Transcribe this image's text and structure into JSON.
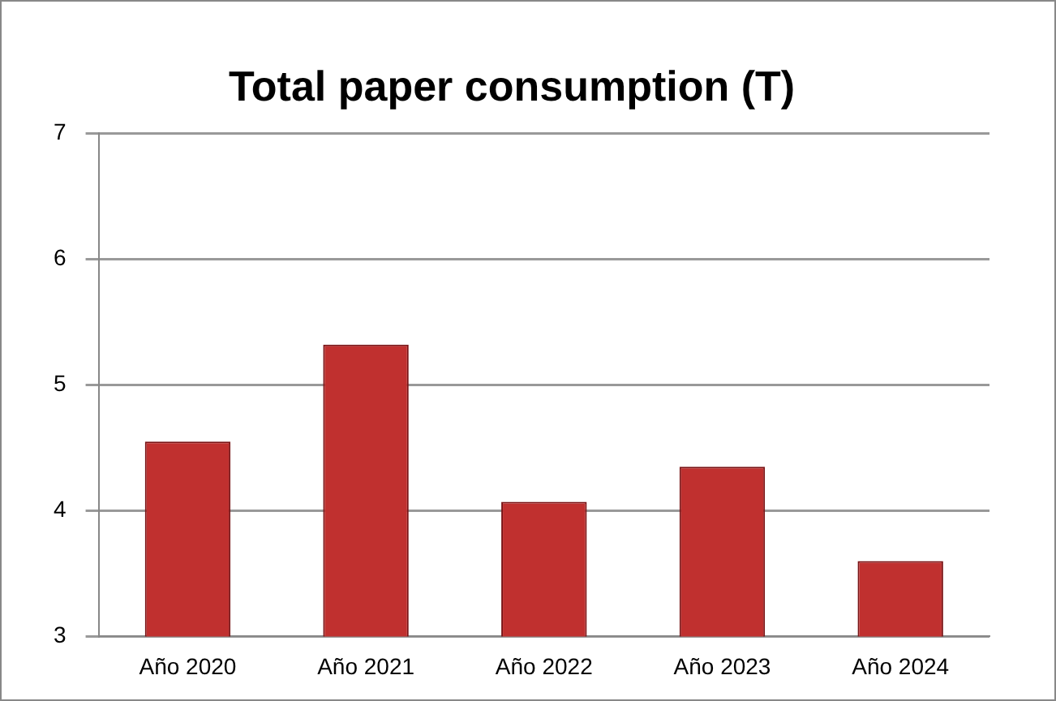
{
  "chart_data": {
    "type": "bar",
    "title": "Total paper consumption (T)",
    "categories": [
      "Año 2020",
      "Año 2021",
      "Año 2022",
      "Año 2023",
      "Año 2024"
    ],
    "values": [
      4.55,
      5.32,
      4.07,
      4.35,
      3.6
    ],
    "color": "#c0302f",
    "ylim": [
      3,
      7
    ],
    "yticks": [
      3,
      4,
      5,
      6,
      7
    ],
    "grid": "y",
    "legend": false
  }
}
